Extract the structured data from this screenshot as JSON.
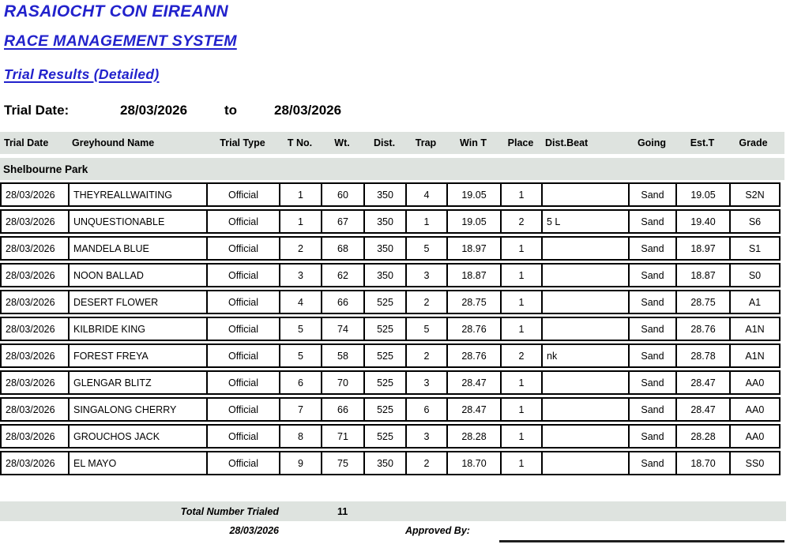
{
  "page": {
    "org_title": "RASAIOCHT CON EIREANN",
    "system_title": "RACE MANAGEMENT SYSTEM",
    "report_title": "Trial Results (Detailed)",
    "accent_color": "#2222cc",
    "band_color": "#dee3df"
  },
  "filter": {
    "label": "Trial Date:",
    "from_date": "28/03/2026",
    "to_label": "to",
    "to_date": "28/03/2026"
  },
  "table": {
    "columns": [
      "Trial Date",
      "Greyhound Name",
      "Trial Type",
      "T No.",
      "Wt.",
      "Dist.",
      "Trap",
      "Win T",
      "Place",
      "Dist.Beat",
      "Going",
      "Est.T",
      "Grade"
    ],
    "group_label": "Shelbourne Park",
    "rows": [
      [
        "28/03/2026",
        "THEYREALLWAITING",
        "Official",
        "1",
        "60",
        "350",
        "4",
        "19.05",
        "1",
        "",
        "Sand",
        "19.05",
        "S2N"
      ],
      [
        "28/03/2026",
        "UNQUESTIONABLE",
        "Official",
        "1",
        "67",
        "350",
        "1",
        "19.05",
        "2",
        "5 L",
        "Sand",
        "19.40",
        "S6"
      ],
      [
        "28/03/2026",
        "MANDELA BLUE",
        "Official",
        "2",
        "68",
        "350",
        "5",
        "18.97",
        "1",
        "",
        "Sand",
        "18.97",
        "S1"
      ],
      [
        "28/03/2026",
        "NOON BALLAD",
        "Official",
        "3",
        "62",
        "350",
        "3",
        "18.87",
        "1",
        "",
        "Sand",
        "18.87",
        "S0"
      ],
      [
        "28/03/2026",
        "DESERT FLOWER",
        "Official",
        "4",
        "66",
        "525",
        "2",
        "28.75",
        "1",
        "",
        "Sand",
        "28.75",
        "A1"
      ],
      [
        "28/03/2026",
        "KILBRIDE KING",
        "Official",
        "5",
        "74",
        "525",
        "5",
        "28.76",
        "1",
        "",
        "Sand",
        "28.76",
        "A1N"
      ],
      [
        "28/03/2026",
        "FOREST FREYA",
        "Official",
        "5",
        "58",
        "525",
        "2",
        "28.76",
        "2",
        "nk",
        "Sand",
        "28.78",
        "A1N"
      ],
      [
        "28/03/2026",
        "GLENGAR BLITZ",
        "Official",
        "6",
        "70",
        "525",
        "3",
        "28.47",
        "1",
        "",
        "Sand",
        "28.47",
        "AA0"
      ],
      [
        "28/03/2026",
        "SINGALONG CHERRY",
        "Official",
        "7",
        "66",
        "525",
        "6",
        "28.47",
        "1",
        "",
        "Sand",
        "28.47",
        "AA0"
      ],
      [
        "28/03/2026",
        "GROUCHOS JACK",
        "Official",
        "8",
        "71",
        "525",
        "3",
        "28.28",
        "1",
        "",
        "Sand",
        "28.28",
        "AA0"
      ],
      [
        "28/03/2026",
        "EL MAYO",
        "Official",
        "9",
        "75",
        "350",
        "2",
        "18.70",
        "1",
        "",
        "Sand",
        "18.70",
        "SS0"
      ]
    ]
  },
  "footer": {
    "total_label": "Total Number Trialed",
    "total_value": "11",
    "date": "28/03/2026",
    "approved_label": "Approved By:"
  }
}
